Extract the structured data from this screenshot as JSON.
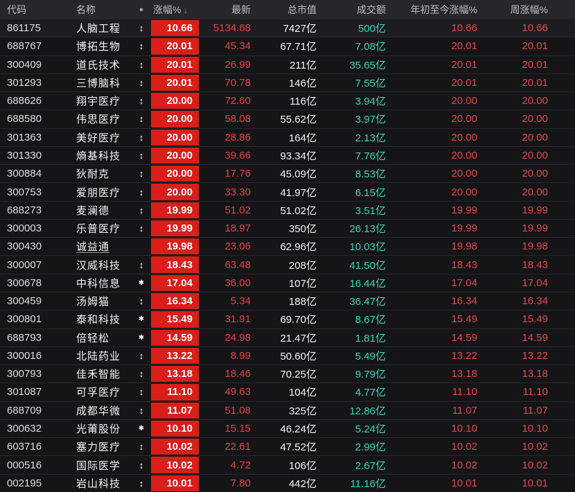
{
  "colors": {
    "page_bg": "#0e0e10",
    "header_bg": "#27272b",
    "row_bg": "#151518",
    "highlight_row_bg": "#1d1d21",
    "pct_cell_bg": "#d81f19",
    "up_red_text": "#e64242",
    "turnover_teal": "#3fd4b7",
    "mcap_white": "#f3f3f5",
    "header_text": "#bcbcc2",
    "sort_arrow_red": "#e3422e"
  },
  "icons": {
    "updown": "↕",
    "star": "✱",
    "dot": "●",
    "sort_desc": "↓"
  },
  "table": {
    "headers": {
      "code": "代码",
      "name": "名称",
      "marker": "●",
      "pct": "涨幅%",
      "latest": "最新",
      "mcap": "总市值",
      "turnover": "成交额",
      "ytd": "年初至今涨幅%",
      "week": "周涨幅%"
    },
    "rows": [
      {
        "code": "861175",
        "name": "人脑工程",
        "marker": "updown",
        "pct": "10.66",
        "latest": "5134.68",
        "mcap": "7427亿",
        "turnover": "500亿",
        "ytd": "10.66",
        "week": "10.66",
        "highlight": true
      },
      {
        "code": "688767",
        "name": "博拓生物",
        "marker": "updown",
        "pct": "20.01",
        "latest": "45.34",
        "mcap": "67.71亿",
        "turnover": "7.08亿",
        "ytd": "20.01",
        "week": "20.01"
      },
      {
        "code": "300409",
        "name": "道氏技术",
        "marker": "updown",
        "pct": "20.01",
        "latest": "26.99",
        "mcap": "211亿",
        "turnover": "35.65亿",
        "ytd": "20.01",
        "week": "20.01"
      },
      {
        "code": "301293",
        "name": "三博脑科",
        "marker": "updown",
        "pct": "20.01",
        "latest": "70.78",
        "mcap": "146亿",
        "turnover": "7.55亿",
        "ytd": "20.01",
        "week": "20.01"
      },
      {
        "code": "688626",
        "name": "翔宇医疗",
        "marker": "updown",
        "pct": "20.00",
        "latest": "72.60",
        "mcap": "116亿",
        "turnover": "3.94亿",
        "ytd": "20.00",
        "week": "20.00"
      },
      {
        "code": "688580",
        "name": "伟思医疗",
        "marker": "updown",
        "pct": "20.00",
        "latest": "58.08",
        "mcap": "55.62亿",
        "turnover": "3.97亿",
        "ytd": "20.00",
        "week": "20.00"
      },
      {
        "code": "301363",
        "name": "美好医疗",
        "marker": "updown",
        "pct": "20.00",
        "latest": "28.86",
        "mcap": "164亿",
        "turnover": "2.13亿",
        "ytd": "20.00",
        "week": "20.00"
      },
      {
        "code": "301330",
        "name": "熵基科技",
        "marker": "updown",
        "pct": "20.00",
        "latest": "39.66",
        "mcap": "93.34亿",
        "turnover": "7.76亿",
        "ytd": "20.00",
        "week": "20.00"
      },
      {
        "code": "300884",
        "name": "狄耐克",
        "marker": "updown",
        "pct": "20.00",
        "latest": "17.76",
        "mcap": "45.09亿",
        "turnover": "8.53亿",
        "ytd": "20.00",
        "week": "20.00"
      },
      {
        "code": "300753",
        "name": "爱朋医疗",
        "marker": "updown",
        "pct": "20.00",
        "latest": "33.30",
        "mcap": "41.97亿",
        "turnover": "6.15亿",
        "ytd": "20.00",
        "week": "20.00"
      },
      {
        "code": "688273",
        "name": "麦澜德",
        "marker": "updown",
        "pct": "19.99",
        "latest": "51.02",
        "mcap": "51.02亿",
        "turnover": "3.51亿",
        "ytd": "19.99",
        "week": "19.99"
      },
      {
        "code": "300003",
        "name": "乐普医疗",
        "marker": "updown",
        "pct": "19.99",
        "latest": "18.97",
        "mcap": "350亿",
        "turnover": "26.13亿",
        "ytd": "19.99",
        "week": "19.99"
      },
      {
        "code": "300430",
        "name": "诚益通",
        "marker": "",
        "underline": true,
        "pct": "19.98",
        "latest": "23.06",
        "mcap": "62.96亿",
        "turnover": "10.03亿",
        "ytd": "19.98",
        "week": "19.98"
      },
      {
        "code": "300007",
        "name": "汉威科技",
        "marker": "updown",
        "pct": "18.43",
        "latest": "63.48",
        "mcap": "208亿",
        "turnover": "41.50亿",
        "ytd": "18.43",
        "week": "18.43"
      },
      {
        "code": "300678",
        "name": "中科信息",
        "marker": "star",
        "pct": "17.04",
        "latest": "36.00",
        "mcap": "107亿",
        "turnover": "16.44亿",
        "ytd": "17.04",
        "week": "17.04"
      },
      {
        "code": "300459",
        "name": "汤姆猫",
        "marker": "updown",
        "pct": "16.34",
        "latest": "5.34",
        "mcap": "188亿",
        "turnover": "36.47亿",
        "ytd": "16.34",
        "week": "16.34"
      },
      {
        "code": "300801",
        "name": "泰和科技",
        "marker": "star",
        "pct": "15.49",
        "latest": "31.91",
        "mcap": "69.70亿",
        "turnover": "8.67亿",
        "ytd": "15.49",
        "week": "15.49"
      },
      {
        "code": "688793",
        "name": "倍轻松",
        "marker": "star",
        "pct": "14.59",
        "latest": "24.98",
        "mcap": "21.47亿",
        "turnover": "1.81亿",
        "ytd": "14.59",
        "week": "14.59"
      },
      {
        "code": "300016",
        "name": "北陆药业",
        "marker": "updown",
        "pct": "13.22",
        "latest": "8.99",
        "mcap": "50.60亿",
        "turnover": "5.49亿",
        "ytd": "13.22",
        "week": "13.22"
      },
      {
        "code": "300793",
        "name": "佳禾智能",
        "marker": "updown",
        "pct": "13.18",
        "latest": "18.46",
        "mcap": "70.25亿",
        "turnover": "9.79亿",
        "ytd": "13.18",
        "week": "13.18"
      },
      {
        "code": "301087",
        "name": "可孚医疗",
        "marker": "updown",
        "pct": "11.10",
        "latest": "49.63",
        "mcap": "104亿",
        "turnover": "4.77亿",
        "ytd": "11.10",
        "week": "11.10"
      },
      {
        "code": "688709",
        "name": "成都华微",
        "marker": "updown",
        "pct": "11.07",
        "latest": "51.08",
        "mcap": "325亿",
        "turnover": "12.86亿",
        "ytd": "11.07",
        "week": "11.07"
      },
      {
        "code": "300632",
        "name": "光莆股份",
        "marker": "star",
        "pct": "10.10",
        "latest": "15.15",
        "mcap": "46.24亿",
        "turnover": "5.24亿",
        "ytd": "10.10",
        "week": "10.10"
      },
      {
        "code": "603716",
        "name": "塞力医疗",
        "marker": "updown",
        "pct": "10.02",
        "latest": "22.61",
        "mcap": "47.52亿",
        "turnover": "2.99亿",
        "ytd": "10.02",
        "week": "10.02"
      },
      {
        "code": "000516",
        "name": "国际医学",
        "marker": "updown",
        "pct": "10.02",
        "latest": "4.72",
        "mcap": "106亿",
        "turnover": "2.67亿",
        "ytd": "10.02",
        "week": "10.02"
      },
      {
        "code": "002195",
        "name": "岩山科技",
        "marker": "updown",
        "pct": "10.01",
        "latest": "7.80",
        "mcap": "442亿",
        "turnover": "11.16亿",
        "ytd": "10.01",
        "week": "10.01"
      }
    ]
  }
}
